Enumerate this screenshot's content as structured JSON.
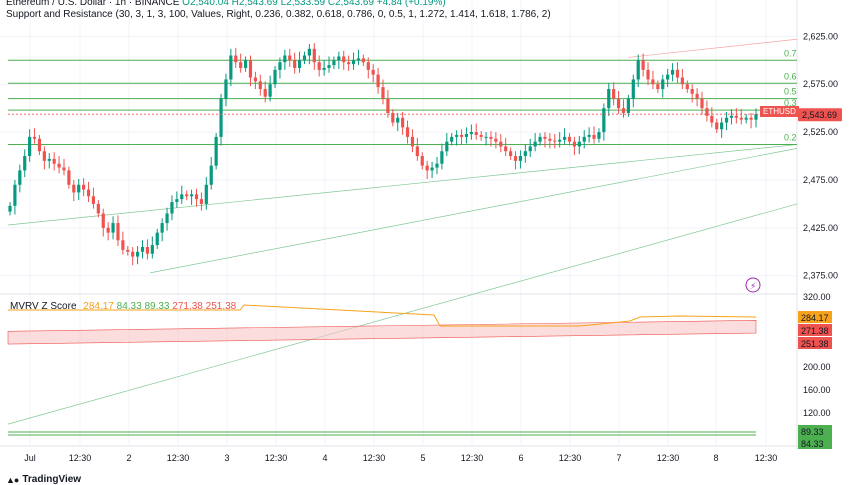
{
  "header": {
    "line1_name": "Ethereum / U.S. Dollar · 1h · BINANCE",
    "line1_values": "O2,540.04  H2,543.69  L2,533.59  C2,543.69  +4.84 (+0.19%)",
    "line2": "Support and Resistance (30, 3, 1, 3, 100, Values, Right, 0.236, 0.382, 0.618, 0.786, 0, 0.5, 1, 1.272, 1.414, 1.618, 1.786, 2)"
  },
  "symbol_tag": "ETHUSD",
  "price_tag": "2,543.69",
  "mvrv": {
    "name": "MVRV Z Score",
    "v1": "284.17",
    "v2": "84.33",
    "v3": "89.33",
    "v4": "271.38",
    "v5": "251.38"
  },
  "branding": "TradingView",
  "colors": {
    "up": "#089981",
    "down": "#ef5350",
    "fib": "#4caf50",
    "mvrv": "#f7a21b",
    "band": "#f7c6c5"
  },
  "chart_data": [
    {
      "type": "candlestick",
      "symbol": "ETHUSD",
      "exchange": "BINANCE",
      "timeframe": "1h",
      "x_ticks": [
        "Jul",
        "12:30",
        "2",
        "12:30",
        "3",
        "12:30",
        "4",
        "12:30",
        "5",
        "12:30",
        "6",
        "12:30",
        "7",
        "12:30",
        "8",
        "12:30"
      ],
      "y_ticks": [
        "2,625.00",
        "2,575.00",
        "2,525.00",
        "2,475.00",
        "2,425.00",
        "2,375.00"
      ],
      "ylim": [
        2358,
        2640
      ],
      "fib_levels": [
        {
          "label": "0.7",
          "value": 2600
        },
        {
          "label": "0.6",
          "value": 2576
        },
        {
          "label": "0.5",
          "value": 2560
        },
        {
          "label": "0.3",
          "value": 2548
        },
        {
          "label": "0.2",
          "value": 2512
        }
      ],
      "current_price": 2543.69,
      "closes": [
        2448,
        2470,
        2485,
        2500,
        2520,
        2518,
        2505,
        2495,
        2497,
        2492,
        2488,
        2485,
        2470,
        2462,
        2470,
        2465,
        2458,
        2450,
        2440,
        2425,
        2420,
        2430,
        2412,
        2402,
        2400,
        2395,
        2400,
        2405,
        2398,
        2407,
        2420,
        2430,
        2440,
        2452,
        2455,
        2460,
        2458,
        2460,
        2455,
        2450,
        2470,
        2490,
        2520,
        2560,
        2580,
        2605,
        2598,
        2592,
        2600,
        2582,
        2578,
        2570,
        2562,
        2575,
        2590,
        2598,
        2605,
        2600,
        2592,
        2600,
        2605,
        2612,
        2598,
        2590,
        2592,
        2595,
        2600,
        2604,
        2598,
        2596,
        2600,
        2602,
        2598,
        2590,
        2585,
        2572,
        2560,
        2545,
        2535,
        2540,
        2530,
        2520,
        2510,
        2500,
        2490,
        2485,
        2488,
        2492,
        2505,
        2515,
        2520,
        2522,
        2520,
        2523,
        2525,
        2522,
        2520,
        2520,
        2518,
        2515,
        2510,
        2505,
        2500,
        2495,
        2500,
        2505,
        2510,
        2515,
        2520,
        2518,
        2516,
        2515,
        2517,
        2520,
        2515,
        2510,
        2515,
        2520,
        2522,
        2518,
        2525,
        2550,
        2570,
        2560,
        2550,
        2545,
        2560,
        2580,
        2600,
        2590,
        2580,
        2575,
        2570,
        2580,
        2585,
        2590,
        2582,
        2575,
        2570,
        2565,
        2560,
        2550,
        2542,
        2535,
        2528,
        2535,
        2540,
        2542,
        2540,
        2538,
        2540,
        2538,
        2543.69
      ],
      "trendlines": [
        {
          "from": [
            "Jul",
            2428
          ],
          "to": [
            "8 12:30",
            2512
          ]
        },
        {
          "from": [
            "2",
            2378
          ],
          "to": [
            "8 12:30",
            2508
          ]
        },
        {
          "from": [
            "Jul",
            2220
          ],
          "to": [
            "8 12:30",
            2450
          ]
        },
        {
          "from": [
            "7",
            2603
          ],
          "to": [
            "8 12:30",
            2622
          ]
        }
      ]
    },
    {
      "type": "line",
      "name": "MVRV Z Score",
      "y_ticks": [
        "320.00",
        "200.00",
        "160.00",
        "120.00"
      ],
      "series_value": 284.17,
      "band": [
        251.38,
        271.38
      ],
      "lower_lines": [
        84.33,
        89.33
      ]
    }
  ]
}
